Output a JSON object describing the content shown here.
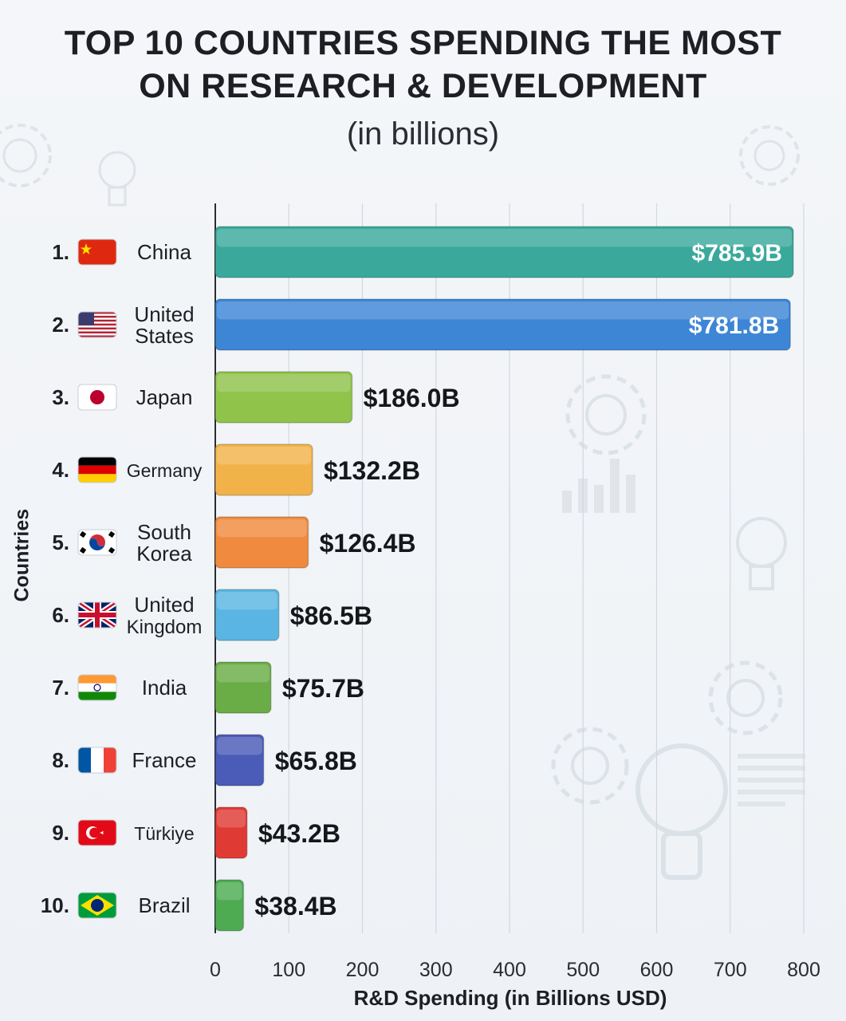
{
  "chart_data": {
    "type": "bar",
    "orientation": "horizontal",
    "title": "TOP 10 COUNTRIES SPENDING THE MOST ON RESEARCH & DEVELOPMENT",
    "title_lines": [
      "TOP 10 COUNTRIES SPENDING THE MOST",
      "ON RESEARCH & DEVELOPMENT"
    ],
    "subtitle": "(in billions)",
    "xlabel": "R&D Spending (in Billions USD)",
    "ylabel": "Countries",
    "xlim": [
      0,
      800
    ],
    "xticks": [
      "0",
      "100",
      "200",
      "300",
      "400",
      "500",
      "600",
      "700",
      "800"
    ],
    "grid": true,
    "categories": [
      {
        "rank": "1.",
        "name": [
          "China"
        ],
        "flag": "china-flag",
        "value": 785.9,
        "label": "$785.9B",
        "color": "#3aa99b",
        "label_inside": true
      },
      {
        "rank": "2.",
        "name": [
          "United",
          "States"
        ],
        "flag": "usa-flag",
        "value": 781.8,
        "label": "$781.8B",
        "color": "#3d86d6",
        "label_inside": true
      },
      {
        "rank": "3.",
        "name": [
          "Japan"
        ],
        "flag": "japan-flag",
        "value": 186.0,
        "label": "$186.0B",
        "color": "#8fc34a",
        "label_inside": false
      },
      {
        "rank": "4.",
        "name": [
          "Germany"
        ],
        "flag": "germany-flag",
        "value": 132.2,
        "label": "$132.2B",
        "color": "#f2b24a",
        "label_inside": false
      },
      {
        "rank": "5.",
        "name": [
          "South",
          "Korea"
        ],
        "flag": "south-korea-flag",
        "value": 126.4,
        "label": "$126.4B",
        "color": "#ef8a3e",
        "label_inside": false
      },
      {
        "rank": "6.",
        "name": [
          "United",
          "Kingdom"
        ],
        "flag": "uk-flag",
        "value": 86.5,
        "label": "$86.5B",
        "color": "#5ab5e2",
        "label_inside": false
      },
      {
        "rank": "7.",
        "name": [
          "India"
        ],
        "flag": "india-flag",
        "value": 75.7,
        "label": "$75.7B",
        "color": "#6aac46",
        "label_inside": false
      },
      {
        "rank": "8.",
        "name": [
          "France"
        ],
        "flag": "france-flag",
        "value": 65.8,
        "label": "$65.8B",
        "color": "#4a5bb8",
        "label_inside": false
      },
      {
        "rank": "9.",
        "name": [
          "Türkiye"
        ],
        "flag": "turkiye-flag",
        "value": 43.2,
        "label": "$43.2B",
        "color": "#e03a34",
        "label_inside": false
      },
      {
        "rank": "10.",
        "name": [
          "Brazil"
        ],
        "flag": "brazil-flag",
        "value": 38.4,
        "label": "$38.4B",
        "color": "#4eab52",
        "label_inside": false
      }
    ]
  }
}
